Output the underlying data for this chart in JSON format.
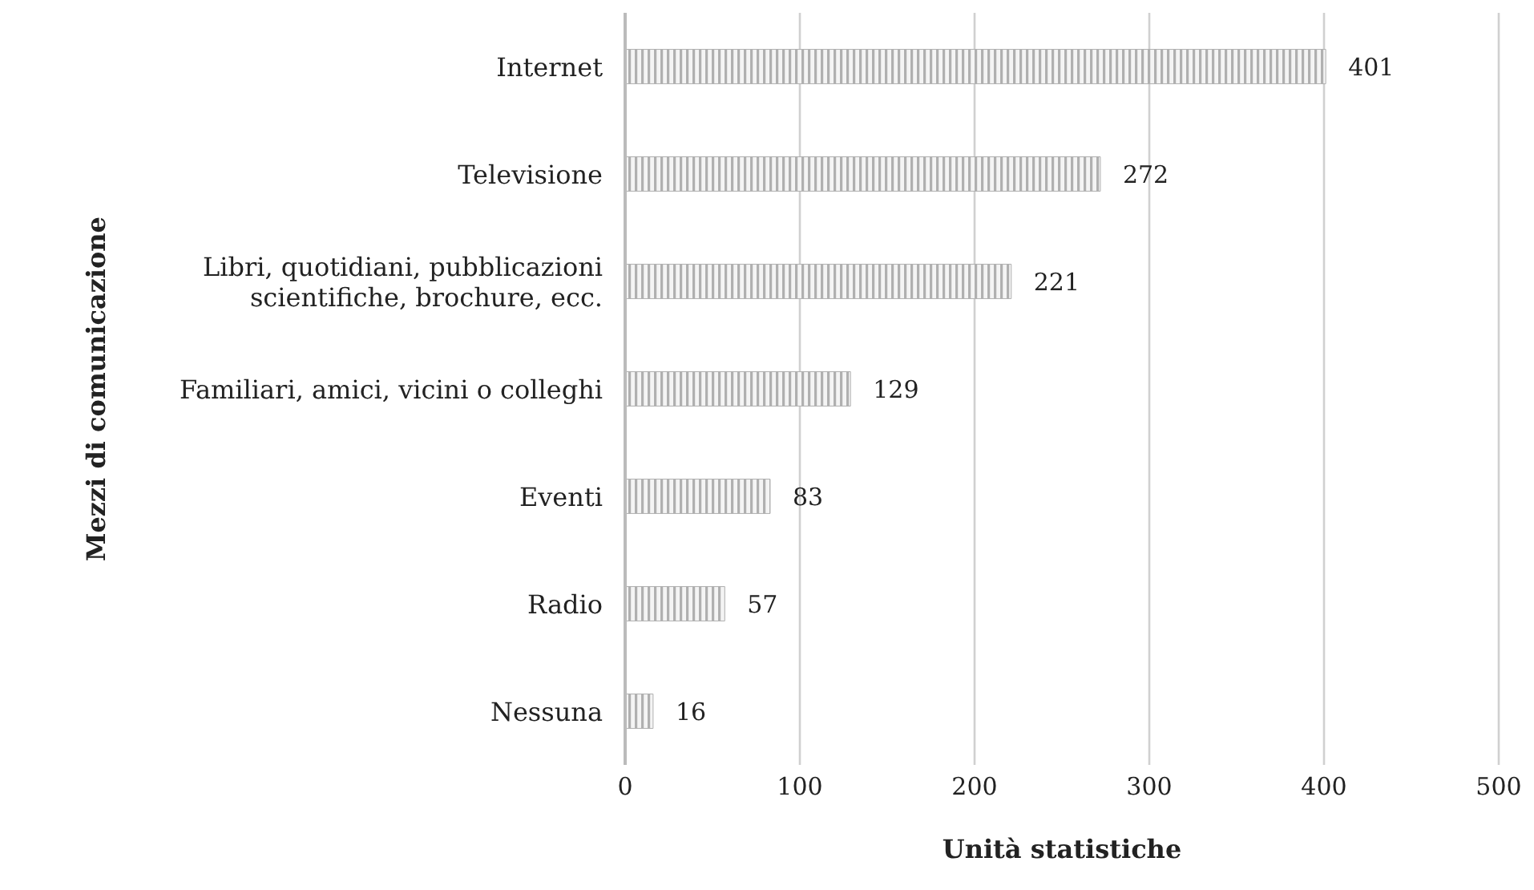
{
  "chart_data": {
    "type": "bar",
    "orientation": "horizontal",
    "xlabel": "Unità statistiche",
    "ylabel": "Mezzi di comunicazione",
    "categories": [
      "Internet",
      "Televisione",
      "Libri, quotidiani, pubblicazioni scientifiche, brochure, ecc.",
      "Familiari, amici, vicini o colleghi",
      "Eventi",
      "Radio",
      "Nessuna"
    ],
    "values": [
      401,
      272,
      221,
      129,
      83,
      57,
      16
    ],
    "color": "#b0b0b0",
    "xlim": [
      0,
      500
    ],
    "xticks": [
      0,
      100,
      200,
      300,
      400,
      500
    ],
    "grid": "x",
    "data_labels": true,
    "legend": false
  }
}
